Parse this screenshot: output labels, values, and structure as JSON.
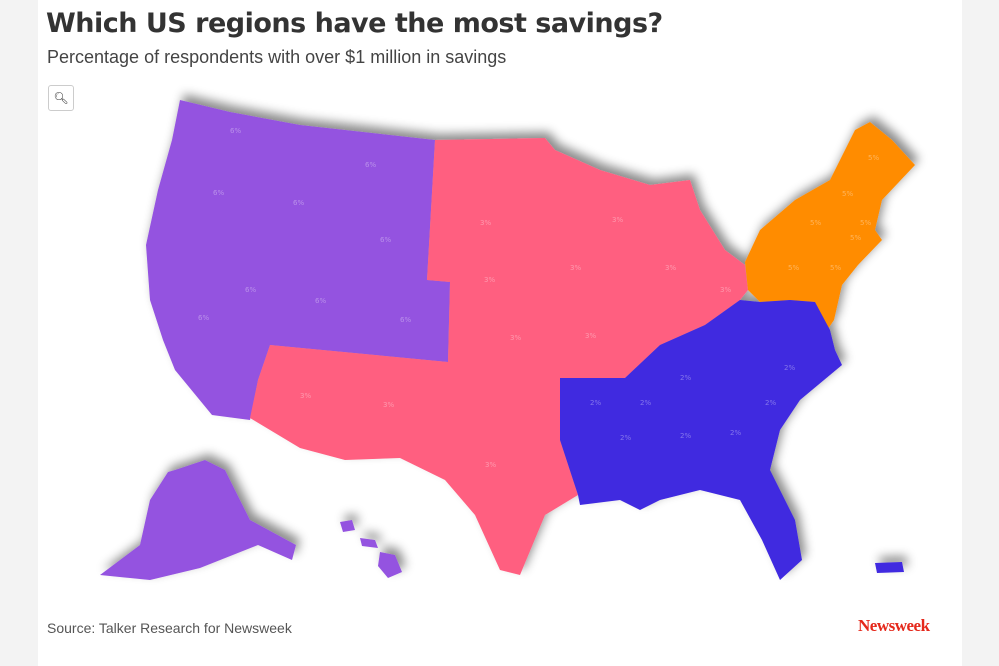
{
  "header": {
    "title": "Which US regions have the most savings?",
    "subtitle": "Percentage of respondents with over $1 million in savings"
  },
  "toolbar": {
    "search_icon": "magnifier-icon"
  },
  "map": {
    "regions": {
      "west": {
        "color": "#9452E0",
        "value": "6%"
      },
      "midwest_southwest": {
        "color": "#FF5E80",
        "value": "3%"
      },
      "northeast": {
        "color": "#FF8C00",
        "value": "5%"
      },
      "south": {
        "color": "#4129E0",
        "value": "2%"
      }
    }
  },
  "footer": {
    "source": "Source: Talker Research for Newsweek",
    "logo": "Newsweek"
  }
}
